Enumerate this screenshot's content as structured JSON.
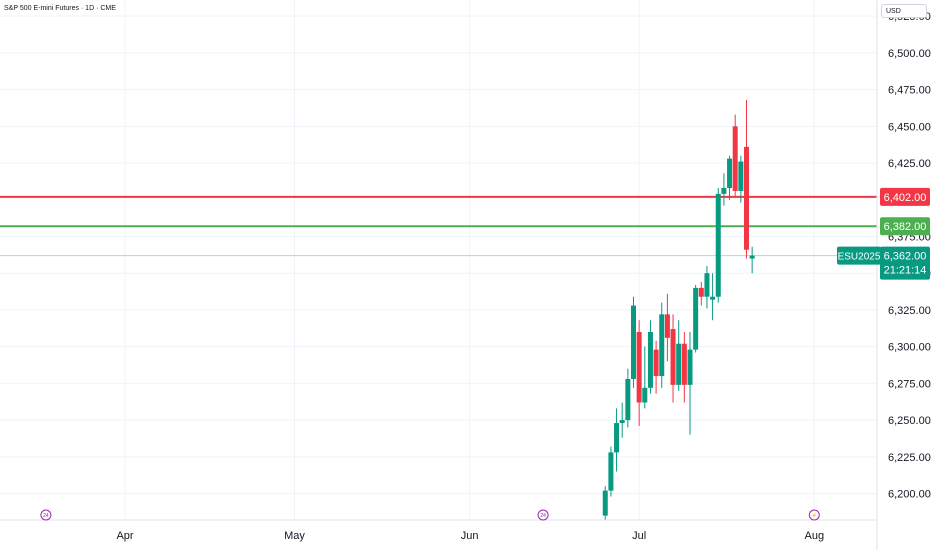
{
  "header": {
    "title": "S&P 500 E-mini Futures · 1D · CME",
    "currency": "USD"
  },
  "chart_data": {
    "type": "candlestick",
    "y_axis": {
      "range": [
        6182,
        6536
      ],
      "ticks": [
        "6,200.00",
        "6,225.00",
        "6,250.00",
        "6,275.00",
        "6,300.00",
        "6,325.00",
        "6,350.00",
        "6,375.00",
        "6,425.00",
        "6,450.00",
        "6,475.00",
        "6,500.00",
        "6,525.00"
      ],
      "tick_values": [
        6200,
        6225,
        6250,
        6275,
        6300,
        6325,
        6350,
        6375,
        6425,
        6450,
        6475,
        6500,
        6525
      ]
    },
    "x_axis": {
      "labels": [
        "Apr",
        "May",
        "Jun",
        "Jul",
        "Aug"
      ],
      "label_days": [
        0,
        30,
        61,
        91,
        122
      ]
    },
    "event_markers": [
      {
        "day": -14,
        "label": "24"
      },
      {
        "day": 74,
        "label": "24"
      },
      {
        "day": 122,
        "label": "⚡"
      }
    ],
    "levels": [
      {
        "name": "resistance",
        "value": 6402,
        "label": "6,402.00",
        "color": "#f23645"
      },
      {
        "name": "support",
        "value": 6382,
        "label": "6,382.00",
        "color": "#4caf50"
      }
    ],
    "last_price": {
      "value": 6362,
      "label": "6,362.00",
      "symbol": "ESU2025",
      "countdown": "21:21:14",
      "color": "#089981"
    },
    "colors": {
      "up": "#089981",
      "down": "#f23645"
    },
    "candles": [
      {
        "day": 85,
        "o": 6185,
        "h": 6205,
        "l": 6182,
        "c": 6202
      },
      {
        "day": 86,
        "o": 6202,
        "h": 6232,
        "l": 6198,
        "c": 6228
      },
      {
        "day": 87,
        "o": 6228,
        "h": 6258,
        "l": 6215,
        "c": 6248
      },
      {
        "day": 88,
        "o": 6248,
        "h": 6262,
        "l": 6238,
        "c": 6250
      },
      {
        "day": 89,
        "o": 6250,
        "h": 6285,
        "l": 6245,
        "c": 6278
      },
      {
        "day": 90,
        "o": 6278,
        "h": 6334,
        "l": 6272,
        "c": 6328
      },
      {
        "day": 91,
        "o": 6310,
        "h": 6318,
        "l": 6246,
        "c": 6262
      },
      {
        "day": 92,
        "o": 6262,
        "h": 6300,
        "l": 6258,
        "c": 6272
      },
      {
        "day": 93,
        "o": 6272,
        "h": 6318,
        "l": 6268,
        "c": 6310
      },
      {
        "day": 94,
        "o": 6298,
        "h": 6304,
        "l": 6268,
        "c": 6280
      },
      {
        "day": 95,
        "o": 6280,
        "h": 6330,
        "l": 6272,
        "c": 6322
      },
      {
        "day": 96,
        "o": 6322,
        "h": 6336,
        "l": 6290,
        "c": 6306
      },
      {
        "day": 97,
        "o": 6312,
        "h": 6322,
        "l": 6262,
        "c": 6274
      },
      {
        "day": 98,
        "o": 6274,
        "h": 6318,
        "l": 6270,
        "c": 6302
      },
      {
        "day": 99,
        "o": 6302,
        "h": 6310,
        "l": 6262,
        "c": 6274
      },
      {
        "day": 100,
        "o": 6274,
        "h": 6310,
        "l": 6240,
        "c": 6298
      },
      {
        "day": 101,
        "o": 6298,
        "h": 6342,
        "l": 6296,
        "c": 6340
      },
      {
        "day": 102,
        "o": 6340,
        "h": 6344,
        "l": 6328,
        "c": 6334
      },
      {
        "day": 103,
        "o": 6334,
        "h": 6355,
        "l": 6326,
        "c": 6350
      },
      {
        "day": 104,
        "o": 6332,
        "h": 6350,
        "l": 6318,
        "c": 6334
      },
      {
        "day": 105,
        "o": 6334,
        "h": 6408,
        "l": 6330,
        "c": 6404
      },
      {
        "day": 106,
        "o": 6404,
        "h": 6418,
        "l": 6396,
        "c": 6408
      },
      {
        "day": 107,
        "o": 6408,
        "h": 6430,
        "l": 6400,
        "c": 6428
      },
      {
        "day": 108,
        "o": 6450,
        "h": 6458,
        "l": 6402,
        "c": 6406
      },
      {
        "day": 109,
        "o": 6406,
        "h": 6430,
        "l": 6398,
        "c": 6426
      },
      {
        "day": 110,
        "o": 6436,
        "h": 6468,
        "l": 6360,
        "c": 6366
      },
      {
        "day": 111,
        "o": 6360,
        "h": 6368,
        "l": 6350,
        "c": 6362
      }
    ]
  }
}
